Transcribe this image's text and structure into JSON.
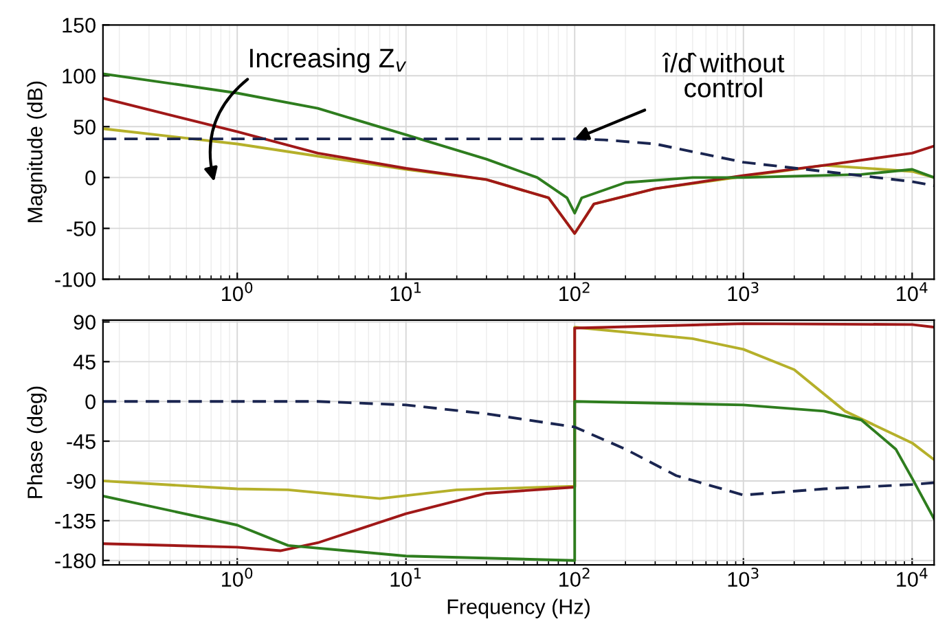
{
  "chart_data": [
    {
      "type": "line",
      "ylabel": "Magnitude (dB)",
      "log": "x",
      "grid": true,
      "xlim": [
        0.16,
        13500
      ],
      "ylim": [
        -100,
        150
      ],
      "xticks": [
        {
          "value": 1,
          "label": "10$^{0}$"
        },
        {
          "value": 10,
          "label": "10$^{1}$"
        },
        {
          "value": 100,
          "label": "10$^{2}$"
        },
        {
          "value": 1000,
          "label": "10$^{3}$"
        },
        {
          "value": 10000,
          "label": "10$^{4}$"
        }
      ],
      "yticks": [
        -100,
        -50,
        0,
        50,
        100,
        150
      ],
      "annotations": [
        "Increasing Z$_{v}$",
        {
          "text": "î/d̂ without\ncontrol",
          "x": 100,
          "y": 38
        }
      ],
      "series": [
        {
          "color": "#b5b02a",
          "line_style": "solid",
          "x": [
            0.16,
            1,
            3,
            10,
            30,
            70,
            100,
            130,
            300,
            1000,
            3000,
            10000,
            13500
          ],
          "values": [
            48,
            33,
            21,
            8,
            -2,
            -20,
            -55,
            -26,
            -11,
            1,
            12,
            6,
            0
          ]
        },
        {
          "color": "#a01818",
          "line_style": "solid",
          "x": [
            0.16,
            1,
            3,
            10,
            30,
            70,
            100,
            130,
            300,
            1000,
            3000,
            10000,
            13500
          ],
          "values": [
            78,
            45,
            24,
            9,
            -2,
            -20,
            -55,
            -26,
            -11,
            2,
            12,
            24,
            31
          ]
        },
        {
          "color": "#2e7d1e",
          "line_style": "solid",
          "x": [
            0.16,
            1,
            3,
            10,
            30,
            60,
            90,
            100,
            110,
            200,
            500,
            1000,
            5000,
            10000,
            13500
          ],
          "values": [
            102,
            83,
            68,
            42,
            18,
            0,
            -20,
            -35,
            -20,
            -5,
            0,
            0,
            3,
            8,
            0
          ]
        },
        {
          "color": "#1a2550",
          "line_style": "dashed",
          "x": [
            0.16,
            1,
            10,
            100,
            150,
            300,
            1000,
            3000,
            10000,
            13500
          ],
          "values": [
            38,
            38,
            38,
            38,
            37,
            33,
            15,
            6,
            -4,
            -8
          ]
        }
      ]
    },
    {
      "type": "line",
      "xlabel": "Frequency (Hz)",
      "ylabel": "Phase (deg)",
      "log": "x",
      "grid": true,
      "xlim": [
        0.16,
        13500
      ],
      "ylim": [
        -185,
        92
      ],
      "xticks": [
        {
          "value": 1,
          "label": "10$^{0}$"
        },
        {
          "value": 10,
          "label": "10$^{1}$"
        },
        {
          "value": 100,
          "label": "10$^{2}$"
        },
        {
          "value": 1000,
          "label": "10$^{3}$"
        },
        {
          "value": 10000,
          "label": "10$^{4}$"
        }
      ],
      "yticks": [
        -180,
        -135,
        -90,
        -45,
        0,
        45,
        90
      ],
      "series": [
        {
          "color": "#b5b02a",
          "line_style": "solid",
          "x": [
            0.16,
            1,
            2,
            7,
            20,
            100,
            100,
            500,
            1000,
            2000,
            4000,
            10000,
            13500
          ],
          "values": [
            -90,
            -99,
            -100,
            -110,
            -100,
            -96,
            84,
            71,
            59,
            36,
            -11,
            -47,
            -66
          ]
        },
        {
          "color": "#a01818",
          "line_style": "solid",
          "x": [
            0.16,
            1,
            1.8,
            3,
            10,
            30,
            100,
            100,
            1000,
            10000,
            13500
          ],
          "values": [
            -161,
            -165,
            -169,
            -160,
            -127,
            -104,
            -97,
            83,
            88,
            87,
            84
          ]
        },
        {
          "color": "#2e7d1e",
          "line_style": "solid",
          "x": [
            0.16,
            1,
            2,
            10,
            100,
            100,
            1000,
            3000,
            5000,
            8000,
            10000,
            13500
          ],
          "values": [
            -107,
            -140,
            -163,
            -175,
            -180,
            0,
            -4,
            -11,
            -21,
            -54,
            -87,
            -133
          ]
        },
        {
          "color": "#1a2550",
          "line_style": "dashed",
          "x": [
            0.16,
            3,
            10,
            30,
            100,
            200,
            400,
            1000,
            3000,
            10000,
            13500
          ],
          "values": [
            0,
            0,
            -4,
            -14,
            -29,
            -54,
            -84,
            -106,
            -99,
            -94,
            -92
          ]
        }
      ]
    }
  ]
}
